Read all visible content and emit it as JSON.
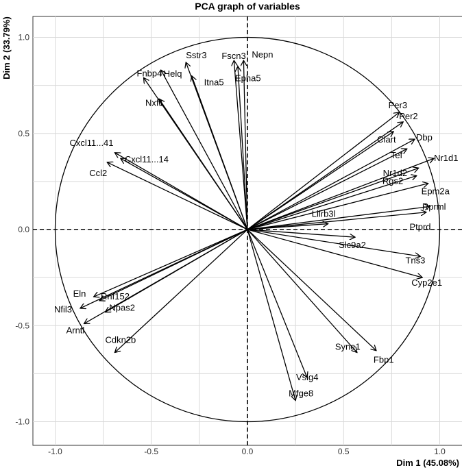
{
  "chart_data": {
    "type": "scatter",
    "subtype": "pca-correlation-circle",
    "title": "PCA graph of variables",
    "xlabel": "Dim 1 (45.08%)",
    "ylabel": "Dim 2 (33.79%)",
    "xlim": [
      -1.05,
      1.05
    ],
    "ylim": [
      -1.05,
      1.05
    ],
    "xticks": [
      "-1.0",
      "-0.5",
      "0.0",
      "0.5",
      "1.0"
    ],
    "yticks": [
      "-1.0",
      "-0.5",
      "0.0",
      "0.5",
      "1.0"
    ],
    "grid": true,
    "unit_circle": true,
    "reference_lines": "dashed at x=0 and y=0",
    "variables": [
      {
        "name": "Sstr3",
        "x": -0.32,
        "y": 0.87
      },
      {
        "name": "Fscn3",
        "x": -0.07,
        "y": 0.88
      },
      {
        "name": "Nepn",
        "x": -0.02,
        "y": 0.88
      },
      {
        "name": "Epha5",
        "x": -0.05,
        "y": 0.85
      },
      {
        "name": "Fnbp4",
        "x": -0.54,
        "y": 0.79
      },
      {
        "name": "Helq",
        "x": -0.45,
        "y": 0.83
      },
      {
        "name": "Itna5",
        "x": -0.29,
        "y": 0.8
      },
      {
        "name": "Nxf1",
        "x": -0.46,
        "y": 0.68
      },
      {
        "name": "Cxcl11...41",
        "x": -0.69,
        "y": 0.4
      },
      {
        "name": "Cxcl11...14",
        "x": -0.66,
        "y": 0.37
      },
      {
        "name": "Ccl2",
        "x": -0.73,
        "y": 0.35
      },
      {
        "name": "Per3",
        "x": 0.79,
        "y": 0.61
      },
      {
        "name": "Per2",
        "x": 0.81,
        "y": 0.56
      },
      {
        "name": "Ciart",
        "x": 0.76,
        "y": 0.51
      },
      {
        "name": "Dbp",
        "x": 0.87,
        "y": 0.47
      },
      {
        "name": "Tef",
        "x": 0.83,
        "y": 0.42
      },
      {
        "name": "Nr1d1",
        "x": 0.97,
        "y": 0.37
      },
      {
        "name": "Nr1d2",
        "x": 0.89,
        "y": 0.32
      },
      {
        "name": "Rgs2",
        "x": 0.88,
        "y": 0.28
      },
      {
        "name": "Epm2a",
        "x": 0.94,
        "y": 0.24
      },
      {
        "name": "Lilrb3l",
        "x": 0.42,
        "y": 0.03
      },
      {
        "name": "Rprml",
        "x": 0.93,
        "y": 0.09
      },
      {
        "name": "Ptprd",
        "x": 0.95,
        "y": 0.12
      },
      {
        "name": "Slc9a2",
        "x": 0.56,
        "y": -0.04
      },
      {
        "name": "Tns3",
        "x": 0.9,
        "y": -0.14
      },
      {
        "name": "Cyp2e1",
        "x": 0.91,
        "y": -0.25
      },
      {
        "name": "Syne1",
        "x": 0.57,
        "y": -0.64
      },
      {
        "name": "Fbp1",
        "x": 0.67,
        "y": -0.63
      },
      {
        "name": "Vsig4",
        "x": 0.31,
        "y": -0.77
      },
      {
        "name": "Mfge8",
        "x": 0.25,
        "y": -0.89
      },
      {
        "name": "Cdkn2b",
        "x": -0.69,
        "y": -0.64
      },
      {
        "name": "Eln",
        "x": -0.8,
        "y": -0.35
      },
      {
        "name": "Rnf152",
        "x": -0.77,
        "y": -0.37
      },
      {
        "name": "Npas2",
        "x": -0.74,
        "y": -0.43
      },
      {
        "name": "Nfil3",
        "x": -0.87,
        "y": -0.41
      },
      {
        "name": "Arntl",
        "x": -0.85,
        "y": -0.49
      }
    ]
  }
}
